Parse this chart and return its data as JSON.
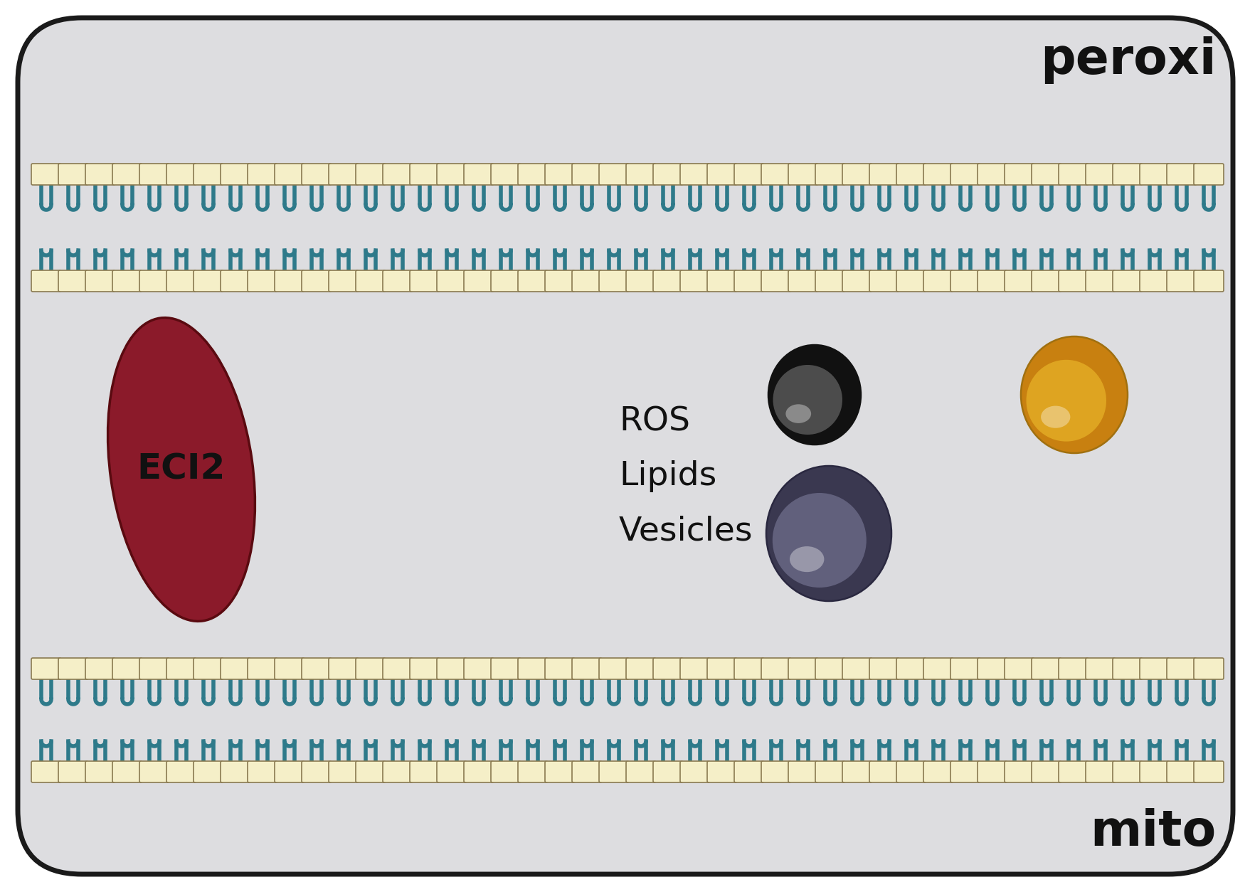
{
  "bg_color": "#dddde0",
  "border_color": "#1a1a1a",
  "membrane_head_color": "#f5efc8",
  "membrane_head_edge_color": "#8a7a50",
  "membrane_tail_color": "#2e7a8a",
  "eci2_color": "#8b1a2a",
  "eci2_edge_color": "#5a0a10",
  "eci2_label": "ECI2",
  "eci2_label_color": "#111111",
  "label_text": "ROS\nLipids\nVesicles",
  "label_color": "#111111",
  "ros_color_top": "#555555",
  "ros_color_bot": "#111111",
  "lipid_color_top": "#f5c832",
  "lipid_color_bot": "#c88010",
  "vesicle_color_top": "#8888a8",
  "vesicle_color_bot": "#3a3850",
  "mito_label": "mito",
  "peroxi_label": "peroxi",
  "corner_label_color": "#111111",
  "figsize": [
    17.58,
    12.54
  ],
  "dpi": 100
}
